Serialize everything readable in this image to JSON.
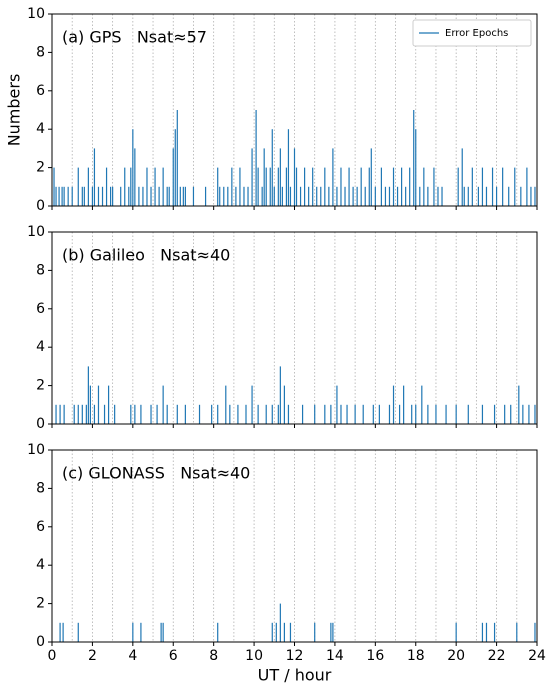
{
  "chart_data": [
    {
      "type": "spike",
      "title": "(a) GPS   Nsat≈57",
      "ylabel": "Numbers",
      "legend": "upper right",
      "x": [
        0.1,
        0.2,
        0.35,
        0.5,
        0.6,
        0.8,
        1.0,
        1.3,
        1.5,
        1.6,
        1.8,
        2.0,
        2.1,
        2.3,
        2.5,
        2.7,
        2.9,
        3.0,
        3.4,
        3.6,
        3.8,
        3.9,
        4.0,
        4.1,
        4.3,
        4.5,
        4.7,
        4.9,
        5.1,
        5.3,
        5.5,
        5.7,
        5.8,
        6.0,
        6.1,
        6.2,
        6.35,
        6.5,
        6.6,
        7.0,
        7.6,
        8.2,
        8.3,
        8.5,
        8.7,
        8.9,
        9.1,
        9.3,
        9.5,
        9.7,
        9.9,
        10.1,
        10.2,
        10.4,
        10.5,
        10.6,
        10.8,
        10.9,
        11.0,
        11.2,
        11.3,
        11.4,
        11.6,
        11.7,
        11.8,
        12.0,
        12.1,
        12.3,
        12.5,
        12.7,
        12.9,
        13.1,
        13.3,
        13.5,
        13.7,
        13.9,
        14.1,
        14.3,
        14.5,
        14.7,
        14.9,
        15.1,
        15.3,
        15.5,
        15.7,
        15.8,
        16.0,
        16.3,
        16.5,
        16.7,
        16.9,
        17.1,
        17.3,
        17.5,
        17.7,
        17.9,
        18.0,
        18.2,
        18.4,
        18.6,
        18.9,
        19.1,
        19.3,
        20.1,
        20.3,
        20.4,
        20.6,
        20.8,
        21.1,
        21.3,
        21.5,
        21.8,
        22.0,
        22.3,
        22.6,
        22.9,
        23.2,
        23.5,
        23.7,
        23.9
      ],
      "series": [
        {
          "name": "Error Epochs",
          "color": "#1f77b4",
          "values": [
            2,
            1,
            1,
            1,
            1,
            1,
            1,
            2,
            1,
            1,
            2,
            1,
            3,
            1,
            1,
            2,
            1,
            1,
            1,
            2,
            1,
            2,
            4,
            3,
            1,
            1,
            2,
            1,
            2,
            1,
            2,
            1,
            1,
            3,
            4,
            5,
            1,
            1,
            1,
            1,
            1,
            2,
            1,
            1,
            1,
            2,
            1,
            2,
            1,
            1,
            3,
            5,
            2,
            1,
            3,
            2,
            2,
            4,
            1,
            2,
            3,
            1,
            2,
            4,
            1,
            3,
            2,
            1,
            2,
            1,
            2,
            1,
            1,
            2,
            1,
            3,
            1,
            2,
            1,
            2,
            1,
            1,
            2,
            1,
            2,
            3,
            1,
            2,
            1,
            1,
            2,
            1,
            2,
            1,
            2,
            5,
            4,
            1,
            2,
            1,
            2,
            1,
            1,
            2,
            3,
            1,
            1,
            2,
            1,
            2,
            1,
            2,
            1,
            2,
            1,
            2,
            1,
            2,
            1,
            1
          ]
        }
      ],
      "xlim": [
        0,
        24
      ],
      "xticks": [
        0,
        2,
        4,
        6,
        8,
        10,
        12,
        14,
        16,
        18,
        20,
        22,
        24
      ],
      "xgrid": [
        1,
        2,
        3,
        4,
        5,
        6,
        7,
        8,
        9,
        10,
        11,
        12,
        13,
        14,
        15,
        16,
        17,
        18,
        19,
        20,
        21,
        22,
        23
      ],
      "ylim": [
        0,
        10
      ],
      "yticks": [
        0,
        2,
        4,
        6,
        8,
        10
      ]
    },
    {
      "type": "spike",
      "title": "(b) Galileo   Nsat≈40",
      "x": [
        0.2,
        0.4,
        0.6,
        1.1,
        1.3,
        1.5,
        1.7,
        1.8,
        1.9,
        2.1,
        2.3,
        2.6,
        2.8,
        3.1,
        3.9,
        4.1,
        4.4,
        4.9,
        5.2,
        5.5,
        5.7,
        6.2,
        6.6,
        7.3,
        7.9,
        8.2,
        8.6,
        8.8,
        9.2,
        9.6,
        9.9,
        10.2,
        10.6,
        10.9,
        11.2,
        11.3,
        11.5,
        11.7,
        12.4,
        13.0,
        13.5,
        13.8,
        14.1,
        14.3,
        14.6,
        15.0,
        15.4,
        15.9,
        16.2,
        16.7,
        16.9,
        17.2,
        17.4,
        17.8,
        18.0,
        18.3,
        18.6,
        19.0,
        19.5,
        20.0,
        20.6,
        21.3,
        21.9,
        22.4,
        22.7,
        23.1,
        23.3,
        23.6,
        23.9
      ],
      "series": [
        {
          "color": "#1f77b4",
          "values": [
            1,
            1,
            1,
            1,
            1,
            1,
            1,
            3,
            2,
            1,
            2,
            1,
            2,
            1,
            1,
            1,
            1,
            1,
            1,
            2,
            1,
            1,
            1,
            1,
            1,
            1,
            2,
            1,
            1,
            1,
            2,
            1,
            1,
            1,
            1,
            3,
            2,
            1,
            1,
            1,
            1,
            1,
            2,
            1,
            1,
            1,
            1,
            1,
            1,
            1,
            2,
            1,
            2,
            1,
            1,
            2,
            1,
            1,
            1,
            1,
            1,
            1,
            1,
            1,
            1,
            2,
            1,
            1,
            1
          ]
        }
      ],
      "xlim": [
        0,
        24
      ],
      "xticks": [
        0,
        2,
        4,
        6,
        8,
        10,
        12,
        14,
        16,
        18,
        20,
        22,
        24
      ],
      "xgrid": [
        1,
        2,
        3,
        4,
        5,
        6,
        7,
        8,
        9,
        10,
        11,
        12,
        13,
        14,
        15,
        16,
        17,
        18,
        19,
        20,
        21,
        22,
        23
      ],
      "ylim": [
        0,
        10
      ],
      "yticks": [
        0,
        2,
        4,
        6,
        8,
        10
      ]
    },
    {
      "type": "spike",
      "title": "(c) GLONASS   Nsat≈40",
      "xlabel": "UT / hour",
      "x": [
        0.4,
        0.55,
        1.3,
        4.0,
        4.4,
        5.4,
        5.5,
        8.2,
        10.9,
        11.1,
        11.3,
        11.5,
        11.8,
        13.0,
        13.8,
        13.9,
        20.0,
        21.3,
        21.5,
        21.9,
        23.0,
        23.9
      ],
      "series": [
        {
          "color": "#1f77b4",
          "values": [
            1,
            1,
            1,
            1,
            1,
            1,
            1,
            1,
            1,
            1,
            2,
            1,
            1,
            1,
            1,
            1,
            1,
            1,
            1,
            1,
            1,
            1
          ]
        }
      ],
      "xlim": [
        0,
        24
      ],
      "xticks": [
        0,
        2,
        4,
        6,
        8,
        10,
        12,
        14,
        16,
        18,
        20,
        22,
        24
      ],
      "xgrid": [
        1,
        2,
        3,
        4,
        5,
        6,
        7,
        8,
        9,
        10,
        11,
        12,
        13,
        14,
        15,
        16,
        17,
        18,
        19,
        20,
        21,
        22,
        23
      ],
      "ylim": [
        0,
        10
      ],
      "yticks": [
        0,
        2,
        4,
        6,
        8,
        10
      ]
    }
  ]
}
